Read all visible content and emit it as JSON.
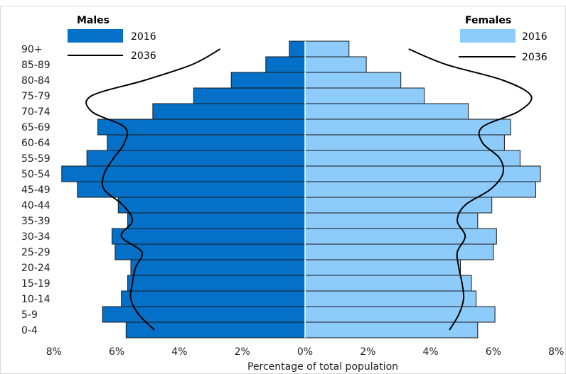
{
  "chart_data": {
    "type": "bar",
    "orientation": "horizontal",
    "layout": "population-pyramid",
    "title": "",
    "xlabel": "Percentage  of total population",
    "ylabel": "",
    "xlim": [
      -8,
      8
    ],
    "x_ticks": [
      -8,
      -6,
      -4,
      -2,
      0,
      2,
      4,
      6,
      8
    ],
    "x_tick_labels": [
      "8%",
      "6%",
      "4%",
      "2%",
      "0%",
      "2%",
      "4%",
      "6%",
      "8%"
    ],
    "grid": false,
    "categories": [
      "0-4",
      "5-9",
      "10-14",
      "15-19",
      "20-24",
      "25-29",
      "30-34",
      "35-39",
      "40-44",
      "45-49",
      "50-54",
      "55-59",
      "60-64",
      "65-69",
      "70-74",
      "75-79",
      "80-84",
      "85-89",
      "90+"
    ],
    "series": [
      {
        "name": "2016",
        "group": "Males",
        "style": "bar",
        "color": "#0570c8",
        "values": [
          5.7,
          6.45,
          5.85,
          5.65,
          5.55,
          6.05,
          6.15,
          5.65,
          5.95,
          7.25,
          7.75,
          6.95,
          6.3,
          6.6,
          4.85,
          3.55,
          2.35,
          1.25,
          0.5
        ]
      },
      {
        "name": "2036",
        "group": "Males",
        "style": "line",
        "color": "#000000",
        "values": [
          4.8,
          5.3,
          5.55,
          5.5,
          5.4,
          5.2,
          5.85,
          5.5,
          5.8,
          6.4,
          6.4,
          6.1,
          5.75,
          5.75,
          6.8,
          6.8,
          5.1,
          3.6,
          2.7
        ]
      },
      {
        "name": "2016",
        "group": "Females",
        "style": "bar",
        "color": "#8ccbfa",
        "values": [
          5.5,
          6.05,
          5.45,
          5.3,
          4.95,
          6.0,
          6.1,
          5.5,
          5.95,
          7.35,
          7.5,
          6.85,
          6.35,
          6.55,
          5.2,
          3.8,
          3.05,
          1.95,
          1.4
        ]
      },
      {
        "name": "2036",
        "group": "Females",
        "style": "line",
        "color": "#000000",
        "values": [
          4.6,
          4.9,
          5.05,
          5.0,
          4.9,
          4.85,
          5.1,
          4.85,
          5.1,
          5.9,
          6.3,
          6.2,
          5.65,
          5.65,
          6.8,
          7.2,
          6.3,
          4.5,
          3.3
        ]
      }
    ],
    "legend": {
      "position": "top-left-and-top-right",
      "males_title": "Males",
      "females_title": "Females",
      "males_items": [
        "2016",
        "2036"
      ],
      "females_items": [
        "2016",
        "2036"
      ]
    }
  }
}
